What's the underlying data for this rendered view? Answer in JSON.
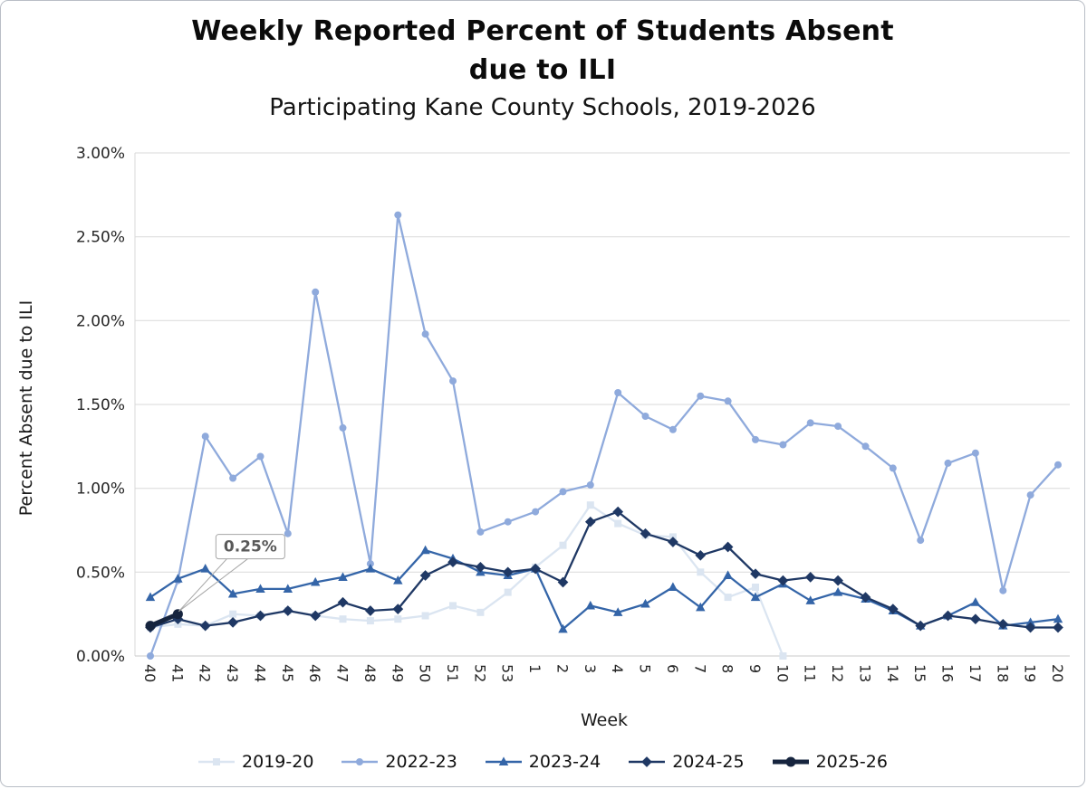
{
  "page": {
    "background": "#ffffff",
    "border_color": "#b9bec6"
  },
  "chart_data": {
    "type": "line",
    "title": "Weekly Reported Percent of Students Absent due to ILI",
    "title_lines": [
      "Weekly Reported Percent of Students Absent",
      "due to ILI"
    ],
    "subtitle": "Participating Kane County Schools, 2019-2026",
    "xlabel": "Week",
    "ylabel": "Percent Absent due to ILI",
    "ylim": [
      0,
      3
    ],
    "grid": true,
    "legend_position": "bottom",
    "yticks": [
      {
        "value": 0.0,
        "label": "0.00%"
      },
      {
        "value": 0.5,
        "label": "0.50%"
      },
      {
        "value": 1.0,
        "label": "1.00%"
      },
      {
        "value": 1.5,
        "label": "1.50%"
      },
      {
        "value": 2.0,
        "label": "2.00%"
      },
      {
        "value": 2.5,
        "label": "2.50%"
      },
      {
        "value": 3.0,
        "label": "3.00%"
      }
    ],
    "categories": [
      "40",
      "41",
      "42",
      "43",
      "44",
      "45",
      "46",
      "47",
      "48",
      "49",
      "50",
      "51",
      "52",
      "53",
      "1",
      "2",
      "3",
      "4",
      "5",
      "6",
      "7",
      "8",
      "9",
      "10",
      "11",
      "12",
      "13",
      "14",
      "15",
      "16",
      "17",
      "18",
      "19",
      "20"
    ],
    "series": [
      {
        "name": "2019-20",
        "color": "#dbe5f1",
        "marker": "square",
        "marker_size": 8,
        "line_width": 2.3,
        "values": [
          0.17,
          0.19,
          0.18,
          0.25,
          0.24,
          0.27,
          0.24,
          0.22,
          0.21,
          0.22,
          0.24,
          0.3,
          0.26,
          0.38,
          0.53,
          0.66,
          0.9,
          0.79,
          0.72,
          0.71,
          0.5,
          0.35,
          0.41,
          0.0,
          null,
          null,
          null,
          null,
          null,
          null,
          null,
          null,
          null,
          null
        ]
      },
      {
        "name": "2022-23",
        "color": "#8faadc",
        "marker": "circle",
        "marker_size": 8,
        "line_width": 2.3,
        "values": [
          0.0,
          0.45,
          1.31,
          1.06,
          1.19,
          0.73,
          2.17,
          1.36,
          0.55,
          2.63,
          1.92,
          1.64,
          0.74,
          0.8,
          0.86,
          0.98,
          1.02,
          1.57,
          1.43,
          1.35,
          1.55,
          1.52,
          1.29,
          1.26,
          1.39,
          1.37,
          1.25,
          1.12,
          0.69,
          1.15,
          1.21,
          0.39,
          0.96,
          1.14
        ]
      },
      {
        "name": "2023-24",
        "color": "#3465a8",
        "marker": "triangle",
        "marker_size": 9,
        "line_width": 2.3,
        "values": [
          0.35,
          0.46,
          0.52,
          0.37,
          0.4,
          0.4,
          0.44,
          0.47,
          0.52,
          0.45,
          0.63,
          0.58,
          0.5,
          0.48,
          0.52,
          0.16,
          0.3,
          0.26,
          0.31,
          0.41,
          0.29,
          0.48,
          0.35,
          0.43,
          0.33,
          0.38,
          0.34,
          0.27,
          0.18,
          0.24,
          0.32,
          0.18,
          0.2,
          0.22
        ]
      },
      {
        "name": "2024-25",
        "color": "#1f3864",
        "marker": "diamond",
        "marker_size": 9,
        "line_width": 2.3,
        "values": [
          0.17,
          0.22,
          0.18,
          0.2,
          0.24,
          0.27,
          0.24,
          0.32,
          0.27,
          0.28,
          0.48,
          0.56,
          0.53,
          0.5,
          0.52,
          0.44,
          0.8,
          0.86,
          0.73,
          0.68,
          0.6,
          0.65,
          0.49,
          0.45,
          0.47,
          0.45,
          0.35,
          0.28,
          0.18,
          0.24,
          0.22,
          0.19,
          0.17,
          0.17
        ]
      },
      {
        "name": "2025-26",
        "color": "#16243e",
        "marker": "circle",
        "marker_size": 11,
        "line_width": 5,
        "values": [
          0.18,
          0.25,
          null,
          null,
          null,
          null,
          null,
          null,
          null,
          null,
          null,
          null,
          null,
          null,
          null,
          null,
          null,
          null,
          null,
          null,
          null,
          null,
          null,
          null,
          null,
          null,
          null,
          null,
          null,
          null,
          null,
          null,
          null,
          null
        ]
      }
    ],
    "annotation": {
      "text": "0.25%",
      "series": "2025-26",
      "category": "41",
      "value": 0.25
    }
  }
}
